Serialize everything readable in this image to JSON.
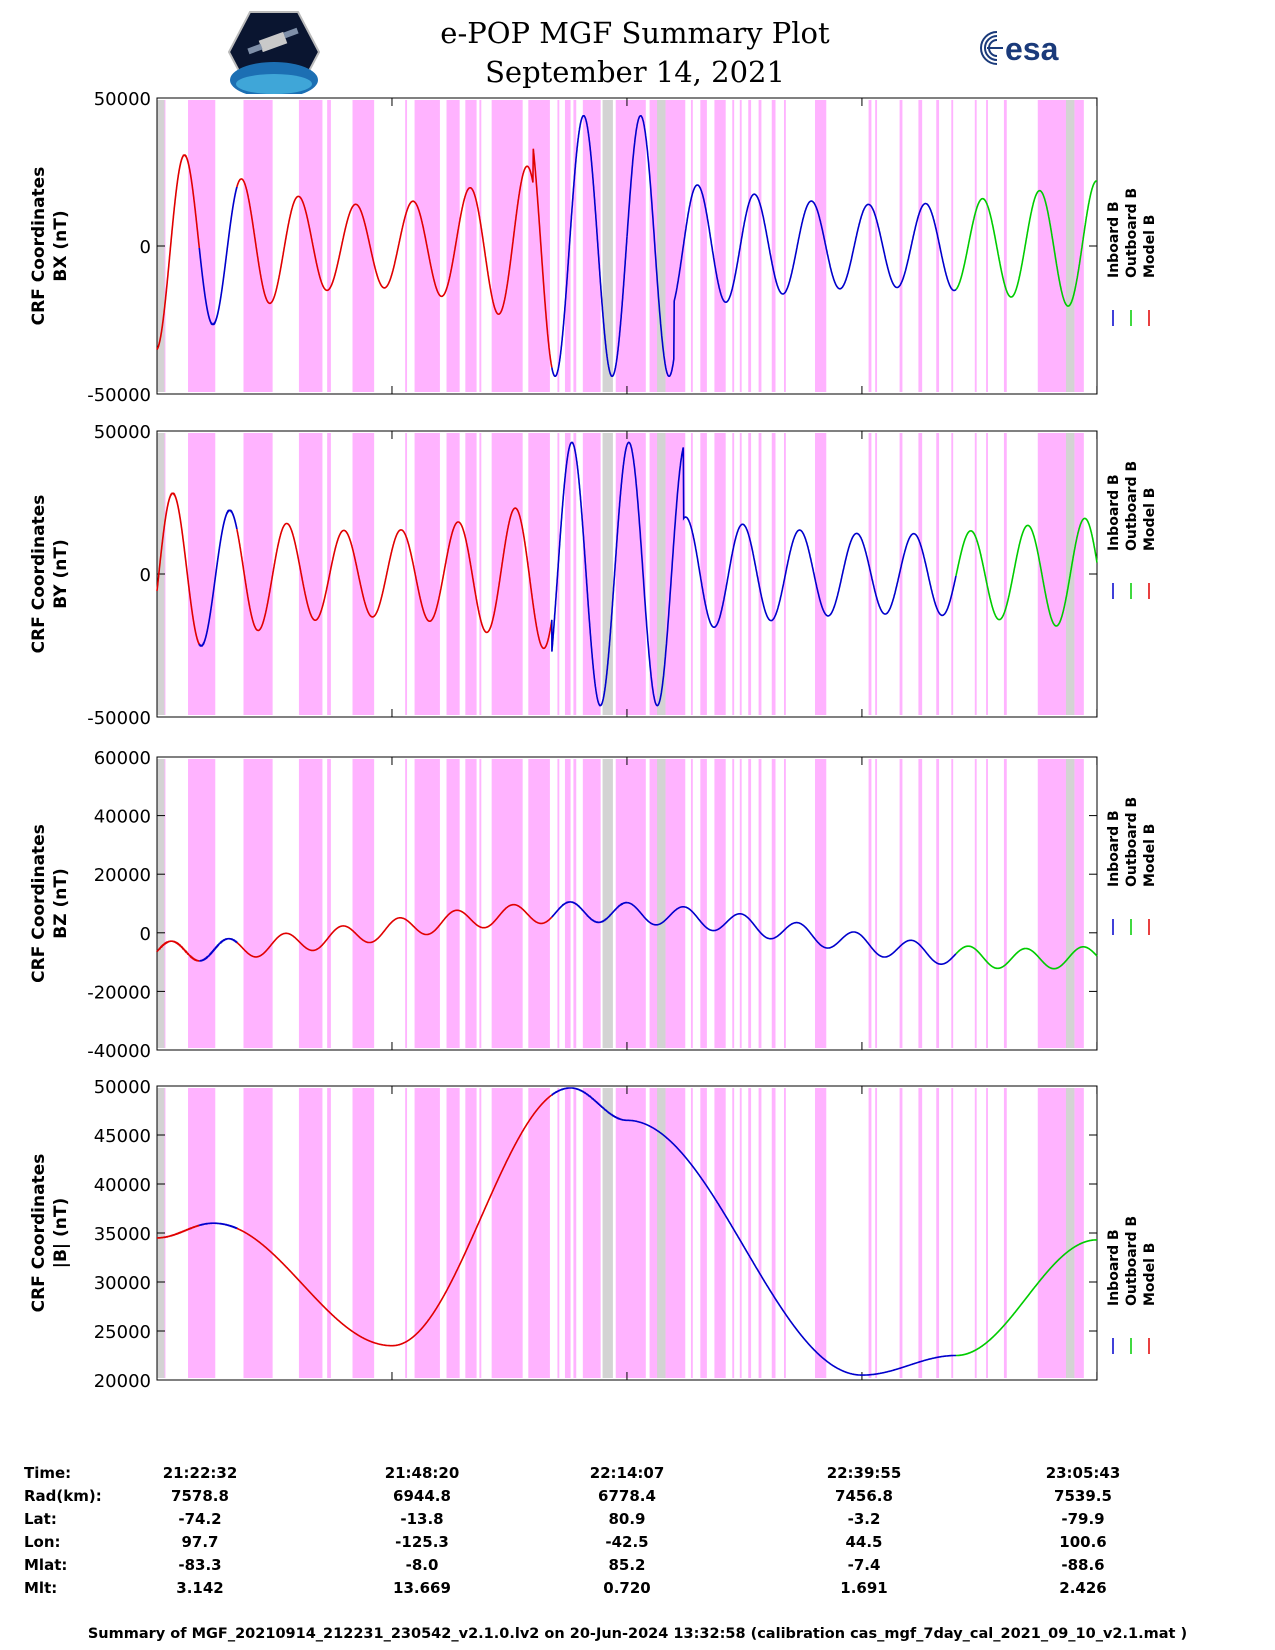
{
  "title": "e-POP MGF Summary Plot",
  "subtitle": "September 14, 2021",
  "logos": {
    "left": "cassiope-logo",
    "right_text": "esa",
    "right_icon": "esa-swirl-icon"
  },
  "colors": {
    "inboard": "#0000cc",
    "outboard": "#00cc00",
    "model": "#e00000",
    "shade_magenta": "#ffb3ff",
    "shade_gray": "#d3d3d3"
  },
  "legend": [
    "Inboard B",
    "Outboard B",
    "Model B"
  ],
  "chart_data": [
    {
      "type": "line",
      "ylabel": "CRF Coordinates BX (nT)",
      "ylim": [
        -50000,
        50000
      ],
      "yticks": [
        -50000,
        0,
        50000
      ],
      "grid": false
    },
    {
      "type": "line",
      "ylabel": "CRF Coordinates BY (nT)",
      "ylim": [
        -50000,
        50000
      ],
      "yticks": [
        -50000,
        0,
        50000
      ],
      "grid": false
    },
    {
      "type": "line",
      "ylabel": "CRF Coordinates BZ (nT)",
      "ylim": [
        -40000,
        60000
      ],
      "yticks": [
        -40000,
        -20000,
        0,
        20000,
        40000,
        60000
      ],
      "grid": false
    },
    {
      "type": "line",
      "ylabel": "CRF Coordinates |B| (nT)",
      "ylim": [
        20000,
        50000
      ],
      "yticks": [
        20000,
        25000,
        30000,
        35000,
        40000,
        45000,
        50000
      ],
      "grid": false
    }
  ],
  "x_axis": {
    "start": "21:22:31",
    "end": "23:05:42",
    "ticks": [
      "21:22:32",
      "21:48:20",
      "22:14:07",
      "22:39:55",
      "23:05:43"
    ]
  },
  "info_table": {
    "rows": [
      {
        "label": "Time:",
        "values": [
          "21:22:32",
          "21:48:20",
          "22:14:07",
          "22:39:55",
          "23:05:43"
        ]
      },
      {
        "label": "Rad(km):",
        "values": [
          "7578.8",
          "6944.8",
          "6778.4",
          "7456.8",
          "7539.5"
        ]
      },
      {
        "label": "Lat:",
        "values": [
          "-74.2",
          "-13.8",
          "80.9",
          "-3.2",
          "-79.9"
        ]
      },
      {
        "label": "Lon:",
        "values": [
          "97.7",
          "-125.3",
          "-42.5",
          "44.5",
          "100.6"
        ]
      },
      {
        "label": "Mlat:",
        "values": [
          "-83.3",
          "-8.0",
          "85.2",
          "-7.4",
          "-88.6"
        ]
      },
      {
        "label": "Mlt:",
        "values": [
          "3.142",
          "13.669",
          "0.720",
          "1.691",
          "2.426"
        ]
      }
    ]
  },
  "footer": "Summary of MGF_20210914_212231_230542_v2.1.0.lv2 on 20-Jun-2024 13:32:58 (calibration cas_mgf_7day_cal_2021_09_10_v2.1.mat )"
}
